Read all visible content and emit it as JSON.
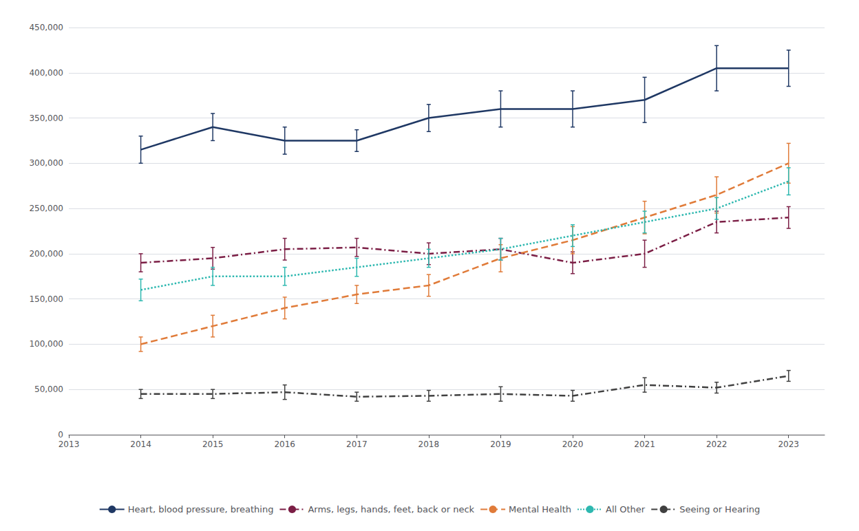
{
  "chart_data": {
    "type": "line",
    "x": [
      2014,
      2015,
      2016,
      2017,
      2018,
      2019,
      2020,
      2021,
      2022,
      2023
    ],
    "series": [
      {
        "name": "Heart, blood pressure, breathing",
        "color": "#1f3864",
        "line_style": "solid",
        "values": [
          315000,
          340000,
          325000,
          325000,
          350000,
          360000,
          360000,
          370000,
          405000,
          405000
        ],
        "errors": [
          15000,
          15000,
          15000,
          12000,
          15000,
          20000,
          20000,
          25000,
          25000,
          20000
        ]
      },
      {
        "name": "Arms, legs, hands, feet, back or neck",
        "color": "#7b1e45",
        "line_style": "dashdot",
        "values": [
          190000,
          195000,
          205000,
          207000,
          200000,
          205000,
          190000,
          200000,
          235000,
          240000
        ],
        "errors": [
          10000,
          12000,
          12000,
          10000,
          12000,
          12000,
          12000,
          15000,
          12000,
          12000
        ]
      },
      {
        "name": "Mental Health",
        "color": "#e07b39",
        "line_style": "dashed",
        "values": [
          100000,
          120000,
          140000,
          155000,
          165000,
          195000,
          215000,
          240000,
          265000,
          300000
        ],
        "errors": [
          8000,
          12000,
          12000,
          10000,
          12000,
          15000,
          15000,
          18000,
          20000,
          22000
        ]
      },
      {
        "name": "All Other",
        "color": "#2eb8b0",
        "line_style": "dotted",
        "values": [
          160000,
          175000,
          175000,
          185000,
          195000,
          205000,
          220000,
          235000,
          250000,
          280000
        ],
        "errors": [
          12000,
          10000,
          10000,
          10000,
          10000,
          12000,
          12000,
          12000,
          12000,
          15000
        ]
      },
      {
        "name": "Seeing or Hearing",
        "color": "#404040",
        "line_style": "dashdot",
        "values": [
          45000,
          45000,
          47000,
          42000,
          43000,
          45000,
          43000,
          55000,
          52000,
          65000
        ],
        "errors": [
          5000,
          5000,
          8000,
          5000,
          6000,
          8000,
          6000,
          8000,
          6000,
          6000
        ]
      }
    ],
    "xlim": [
      2013,
      2023.5
    ],
    "xticks": [
      2013,
      2014,
      2015,
      2016,
      2017,
      2018,
      2019,
      2020,
      2021,
      2022,
      2023
    ],
    "ylim": [
      0,
      450000
    ],
    "yticks": [
      0,
      {
        "value": 50000,
        "label": "50,000"
      },
      {
        "value": 100000,
        "label": "100,000"
      },
      {
        "value": 150000,
        "label": "150,000"
      },
      {
        "value": 200000,
        "label": "200,000"
      },
      {
        "value": 250000,
        "label": "250,000"
      },
      {
        "value": 300000,
        "label": "300,000"
      },
      {
        "value": 350000,
        "label": "350,000"
      },
      {
        "value": 400000,
        "label": "400,000"
      },
      {
        "value": 450000,
        "label": "450,000"
      }
    ],
    "grid": true,
    "legend": "bottom"
  }
}
